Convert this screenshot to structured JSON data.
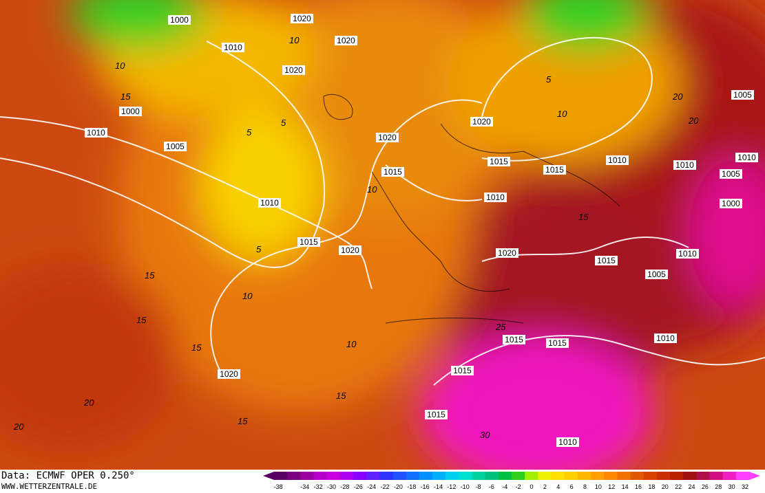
{
  "footer": {
    "source": "Data: ECMWF OPER 0.250°",
    "site": "WWW.WETTERZENTRALE.DE"
  },
  "isobar_labels": [
    1000,
    1020,
    1010,
    1020,
    1020,
    1000,
    1010,
    1005,
    1020,
    1020,
    1015,
    1015,
    1015,
    1010,
    1010,
    1010,
    1005,
    1005,
    1000,
    1010,
    1010,
    1015,
    1020,
    1020,
    1015,
    1010,
    1005,
    1015,
    1015,
    1010,
    1015,
    1020,
    1015,
    1010
  ],
  "isotherm_labels": [
    10,
    15,
    5,
    10,
    5,
    5,
    10,
    20,
    20,
    10,
    5,
    15,
    10,
    15,
    15,
    10,
    15,
    20,
    15,
    20,
    30,
    25,
    15
  ],
  "colorbar": {
    "ticks": [
      -38,
      -34,
      -32,
      -30,
      -28,
      -26,
      -24,
      -22,
      -20,
      -18,
      -16,
      -14,
      -12,
      -10,
      -8,
      -6,
      -4,
      -2,
      0,
      2,
      4,
      6,
      8,
      10,
      12,
      14,
      16,
      18,
      20,
      22,
      24,
      26,
      28,
      30,
      32
    ],
    "colors": [
      "#5a0060",
      "#7a0080",
      "#9a00a0",
      "#b400c8",
      "#c800e0",
      "#b000f0",
      "#8a00ff",
      "#6020ff",
      "#3030ff",
      "#2050ff",
      "#1070ff",
      "#0090ff",
      "#00b0ff",
      "#00d0f0",
      "#00e0d0",
      "#00d0a0",
      "#00c080",
      "#00c040",
      "#30d020",
      "#a0f000",
      "#f0f000",
      "#ffe000",
      "#ffd000",
      "#ffb800",
      "#ffa000",
      "#ff8800",
      "#f07000",
      "#e05800",
      "#d84000",
      "#c83000",
      "#b82000",
      "#a01010",
      "#b0104a",
      "#d01080",
      "#f020c0",
      "#ff40ff"
    ]
  }
}
